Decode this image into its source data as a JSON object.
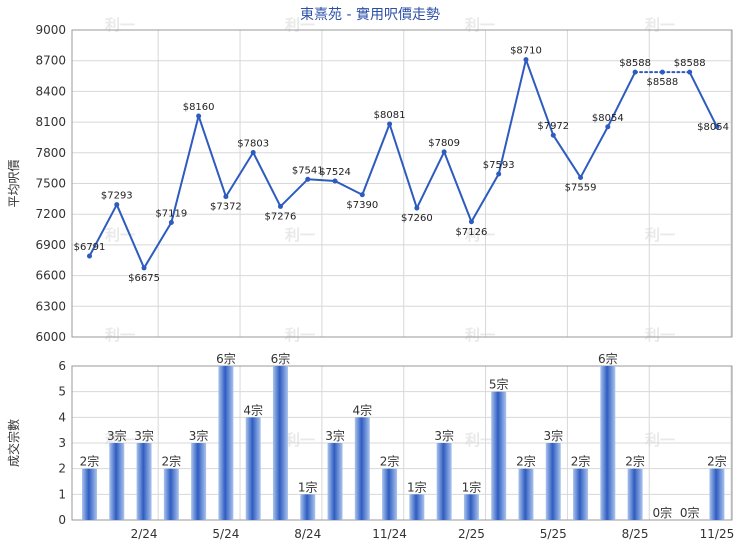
{
  "title": "東熹苑 - 實用呎價走勢",
  "colors": {
    "line": "#2d5bbf",
    "bar_light": "#aac4ee",
    "bar_dark": "#2f5cc0",
    "title": "#2c4fa8"
  },
  "watermark": "利一",
  "chart_data": [
    {
      "type": "line",
      "ylabel": "平均呎價",
      "ylim": [
        6000,
        9000
      ],
      "yticks": [
        "9000",
        "8700",
        "8400",
        "8100",
        "7800",
        "7500",
        "7200",
        "6900",
        "6600",
        "6300",
        "6000"
      ],
      "ytick_values": [
        9000,
        8700,
        8400,
        8100,
        7800,
        7500,
        7200,
        6900,
        6600,
        6300,
        6000
      ],
      "values": [
        6791,
        7293,
        6675,
        7119,
        8160,
        7372,
        7803,
        7276,
        7541,
        7524,
        7390,
        8081,
        7260,
        7809,
        7126,
        7593,
        8710,
        7972,
        7559,
        8054,
        8588,
        8588,
        8588,
        8054
      ],
      "labels": [
        "$6791",
        "$7293",
        "$6675",
        "$7119",
        "$8160",
        "$7372",
        "$7803",
        "$7276",
        "$7541",
        "$7524",
        "$7390",
        "$8081",
        "$7260",
        "$7809",
        "$7126",
        "$7593",
        "$8710",
        "$7972",
        "$7559",
        "$8054",
        "$8588",
        "$8588",
        "$8588",
        "$8054"
      ],
      "dotted_segments": [
        [
          20,
          21
        ],
        [
          21,
          22
        ]
      ],
      "grid": true
    },
    {
      "type": "bar",
      "ylabel": "成交宗數",
      "ylim": [
        0,
        6
      ],
      "yticks": [
        "6",
        "5",
        "4",
        "3",
        "2",
        "1",
        "0"
      ],
      "ytick_values": [
        6,
        5,
        4,
        3,
        2,
        1,
        0
      ],
      "values": [
        2,
        3,
        3,
        2,
        3,
        6,
        4,
        6,
        1,
        3,
        4,
        2,
        1,
        3,
        1,
        5,
        2,
        3,
        2,
        6,
        2,
        0,
        0,
        2
      ],
      "labels": [
        "2宗",
        "3宗",
        "3宗",
        "2宗",
        "3宗",
        "6宗",
        "4宗",
        "6宗",
        "1宗",
        "3宗",
        "4宗",
        "2宗",
        "1宗",
        "3宗",
        "1宗",
        "5宗",
        "2宗",
        "3宗",
        "2宗",
        "6宗",
        "2宗",
        "0宗",
        "0宗",
        "2宗"
      ],
      "xtick_labels": [
        "2/24",
        "5/24",
        "8/24",
        "11/24",
        "2/25",
        "5/25",
        "8/25",
        "11/25"
      ],
      "xtick_index": [
        2,
        5,
        8,
        11,
        14,
        17,
        20,
        23
      ],
      "grid": true
    }
  ]
}
